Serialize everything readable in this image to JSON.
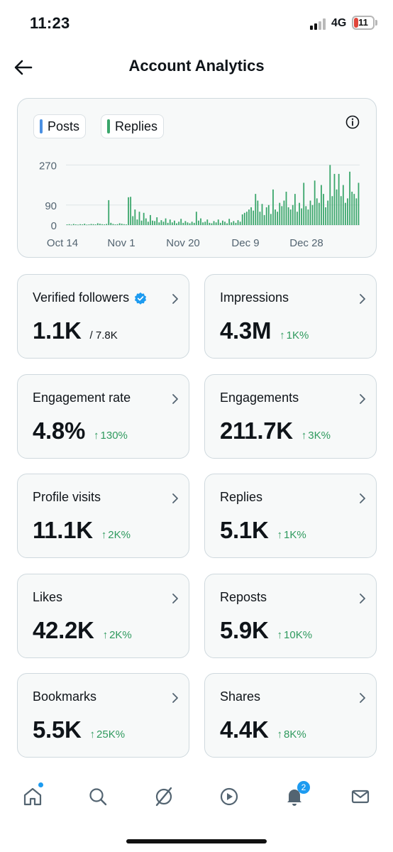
{
  "status_bar": {
    "time": "11:23",
    "network": "4G",
    "battery": "11",
    "battery_color": "#e0453a"
  },
  "header": {
    "title": "Account Analytics",
    "back_icon": "arrow-left-icon"
  },
  "chart": {
    "legend": [
      {
        "label": "Posts",
        "color": "#4a90e2"
      },
      {
        "label": "Replies",
        "color": "#3aa66b"
      }
    ],
    "info_icon": "info-circle-icon"
  },
  "chart_data": {
    "type": "bar",
    "xlabel": "",
    "ylabel": "",
    "ylim": [
      0,
      300
    ],
    "yticks": [
      0,
      90,
      270
    ],
    "x_tick_labels": [
      "Oct 14",
      "Nov 1",
      "Nov 20",
      "Dec 9",
      "Dec 28"
    ],
    "grid": true,
    "legend_position": "top-left",
    "series": [
      {
        "name": "Posts",
        "color": "#4a90e2",
        "values": [
          0,
          0,
          0,
          0,
          0,
          0,
          0,
          0,
          0,
          0,
          0,
          0,
          0,
          0,
          0,
          0,
          0,
          0,
          0,
          0,
          0,
          0,
          0,
          0,
          0,
          0,
          0,
          0,
          0,
          0,
          0,
          0,
          0,
          0,
          0,
          0,
          0,
          0,
          0,
          0,
          0,
          0,
          0,
          0,
          0,
          0,
          0,
          0,
          0,
          0,
          0,
          0,
          0,
          0,
          0,
          0,
          0,
          0,
          0,
          0,
          0,
          0,
          0,
          0,
          0,
          0,
          0,
          0,
          0,
          0,
          0,
          0,
          0,
          0,
          0,
          0,
          0,
          0,
          0,
          0,
          0,
          0,
          0,
          0,
          0,
          0,
          0,
          0,
          0,
          0,
          0,
          0,
          0,
          0,
          0,
          0,
          0,
          0,
          0,
          0,
          0,
          0,
          0,
          0,
          0,
          0,
          0,
          0,
          0,
          0,
          0,
          0,
          0,
          0,
          0,
          0,
          0,
          0,
          0,
          0,
          0,
          0,
          0,
          0,
          0,
          0,
          0,
          0,
          0,
          0,
          0,
          0,
          0,
          0
        ]
      },
      {
        "name": "Replies",
        "color": "#3aa66b",
        "values": [
          3,
          4,
          2,
          5,
          3,
          2,
          4,
          3,
          6,
          2,
          3,
          5,
          4,
          3,
          8,
          6,
          4,
          3,
          5,
          112,
          10,
          5,
          3,
          4,
          8,
          6,
          4,
          3,
          125,
          127,
          40,
          70,
          25,
          60,
          20,
          55,
          30,
          15,
          45,
          20,
          18,
          35,
          12,
          22,
          15,
          30,
          10,
          25,
          12,
          20,
          8,
          15,
          28,
          10,
          18,
          12,
          8,
          15,
          10,
          60,
          20,
          30,
          12,
          15,
          25,
          10,
          8,
          18,
          12,
          25,
          10,
          20,
          15,
          8,
          28,
          12,
          18,
          10,
          22,
          15,
          48,
          55,
          60,
          70,
          80,
          65,
          140,
          110,
          60,
          95,
          45,
          80,
          90,
          50,
          160,
          70,
          60,
          100,
          85,
          110,
          150,
          80,
          70,
          90,
          140,
          60,
          100,
          75,
          190,
          85,
          70,
          110,
          90,
          200,
          120,
          100,
          180,
          140,
          80,
          110,
          270,
          130,
          230,
          160,
          230,
          130,
          180,
          100,
          120,
          240,
          150,
          140,
          120,
          190
        ]
      }
    ]
  },
  "metrics": [
    {
      "label": "Verified followers",
      "value": "1.1K",
      "sub": "/ 7.8K",
      "change": "",
      "verified": true
    },
    {
      "label": "Impressions",
      "value": "4.3M",
      "sub": "",
      "change": "1K%"
    },
    {
      "label": "Engagement rate",
      "value": "4.8%",
      "sub": "",
      "change": "130%"
    },
    {
      "label": "Engagements",
      "value": "211.7K",
      "sub": "",
      "change": "3K%"
    },
    {
      "label": "Profile visits",
      "value": "11.1K",
      "sub": "",
      "change": "2K%"
    },
    {
      "label": "Replies",
      "value": "5.1K",
      "sub": "",
      "change": "1K%"
    },
    {
      "label": "Likes",
      "value": "42.2K",
      "sub": "",
      "change": "2K%"
    },
    {
      "label": "Reposts",
      "value": "5.9K",
      "sub": "",
      "change": "10K%"
    },
    {
      "label": "Bookmarks",
      "value": "5.5K",
      "sub": "",
      "change": "25K%"
    },
    {
      "label": "Shares",
      "value": "4.4K",
      "sub": "",
      "change": "8K%"
    }
  ],
  "bottom_nav": {
    "items": [
      "home-icon",
      "search-icon",
      "grok-icon",
      "play-icon",
      "bell-icon",
      "mail-icon"
    ],
    "notification_badge": "2",
    "accent_color": "#1d9bf0"
  },
  "colors": {
    "positive_change": "#2f9a5e",
    "card_background": "#f7f9f9",
    "card_border": "#cfd9de"
  }
}
